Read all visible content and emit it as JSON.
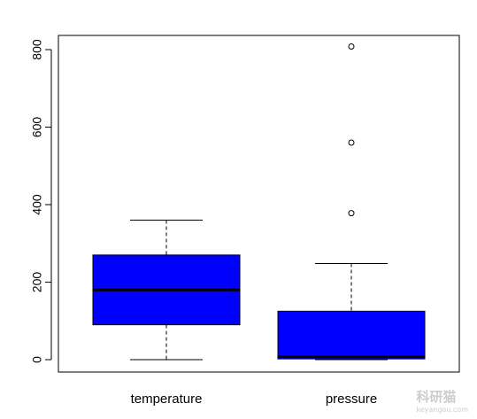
{
  "chart_data": {
    "type": "boxplot",
    "categories": [
      "temperature",
      "pressure"
    ],
    "ylim": [
      -30,
      830
    ],
    "yticks": [
      0,
      200,
      400,
      600,
      800
    ],
    "grid": false,
    "box_color": "#0000ff",
    "series": [
      {
        "name": "temperature",
        "whisker_low": 0,
        "q1": 90,
        "median": 180,
        "q3": 270,
        "whisker_high": 360,
        "outliers": []
      },
      {
        "name": "pressure",
        "whisker_low": 0,
        "q1": 2,
        "median": 8,
        "q3": 125,
        "whisker_high": 248,
        "outliers": [
          378,
          560,
          808
        ]
      }
    ]
  },
  "watermark": {
    "text": "科研猫",
    "sub": "keyangou.com"
  }
}
